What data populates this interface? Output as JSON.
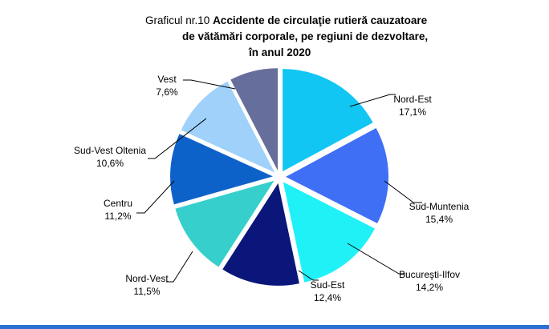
{
  "title": {
    "prefix": "Graficul nr.10",
    "line1": "Accidente de circulaţie rutieră cauzatoare",
    "line2": "de vătămări corporale, pe regiuni de dezvoltare,",
    "line3": "în anul 2020"
  },
  "chart_data": {
    "type": "pie",
    "unit": "%",
    "slices": [
      {
        "label": "Nord-Est",
        "value": 17.1,
        "value_text": "17,1%",
        "color": "#11c6f3"
      },
      {
        "label": "Sud-Muntenia",
        "value": 15.4,
        "value_text": "15,4%",
        "color": "#3f6ff5"
      },
      {
        "label": "Bucureşti-Ilfov",
        "value": 14.2,
        "value_text": "14,2%",
        "color": "#1ff1f7"
      },
      {
        "label": "Sud-Est",
        "value": 12.4,
        "value_text": "12,4%",
        "color": "#0a167a"
      },
      {
        "label": "Nord-Vest",
        "value": 11.5,
        "value_text": "11,5%",
        "color": "#36cfcb"
      },
      {
        "label": "Centru",
        "value": 11.2,
        "value_text": "11,2%",
        "color": "#0d62c9"
      },
      {
        "label": "Sud-Vest Oltenia",
        "value": 10.6,
        "value_text": "10,6%",
        "color": "#9fd1fb"
      },
      {
        "label": "Vest",
        "value": 7.6,
        "value_text": "7,6%",
        "color": "#666e9b"
      }
    ]
  }
}
